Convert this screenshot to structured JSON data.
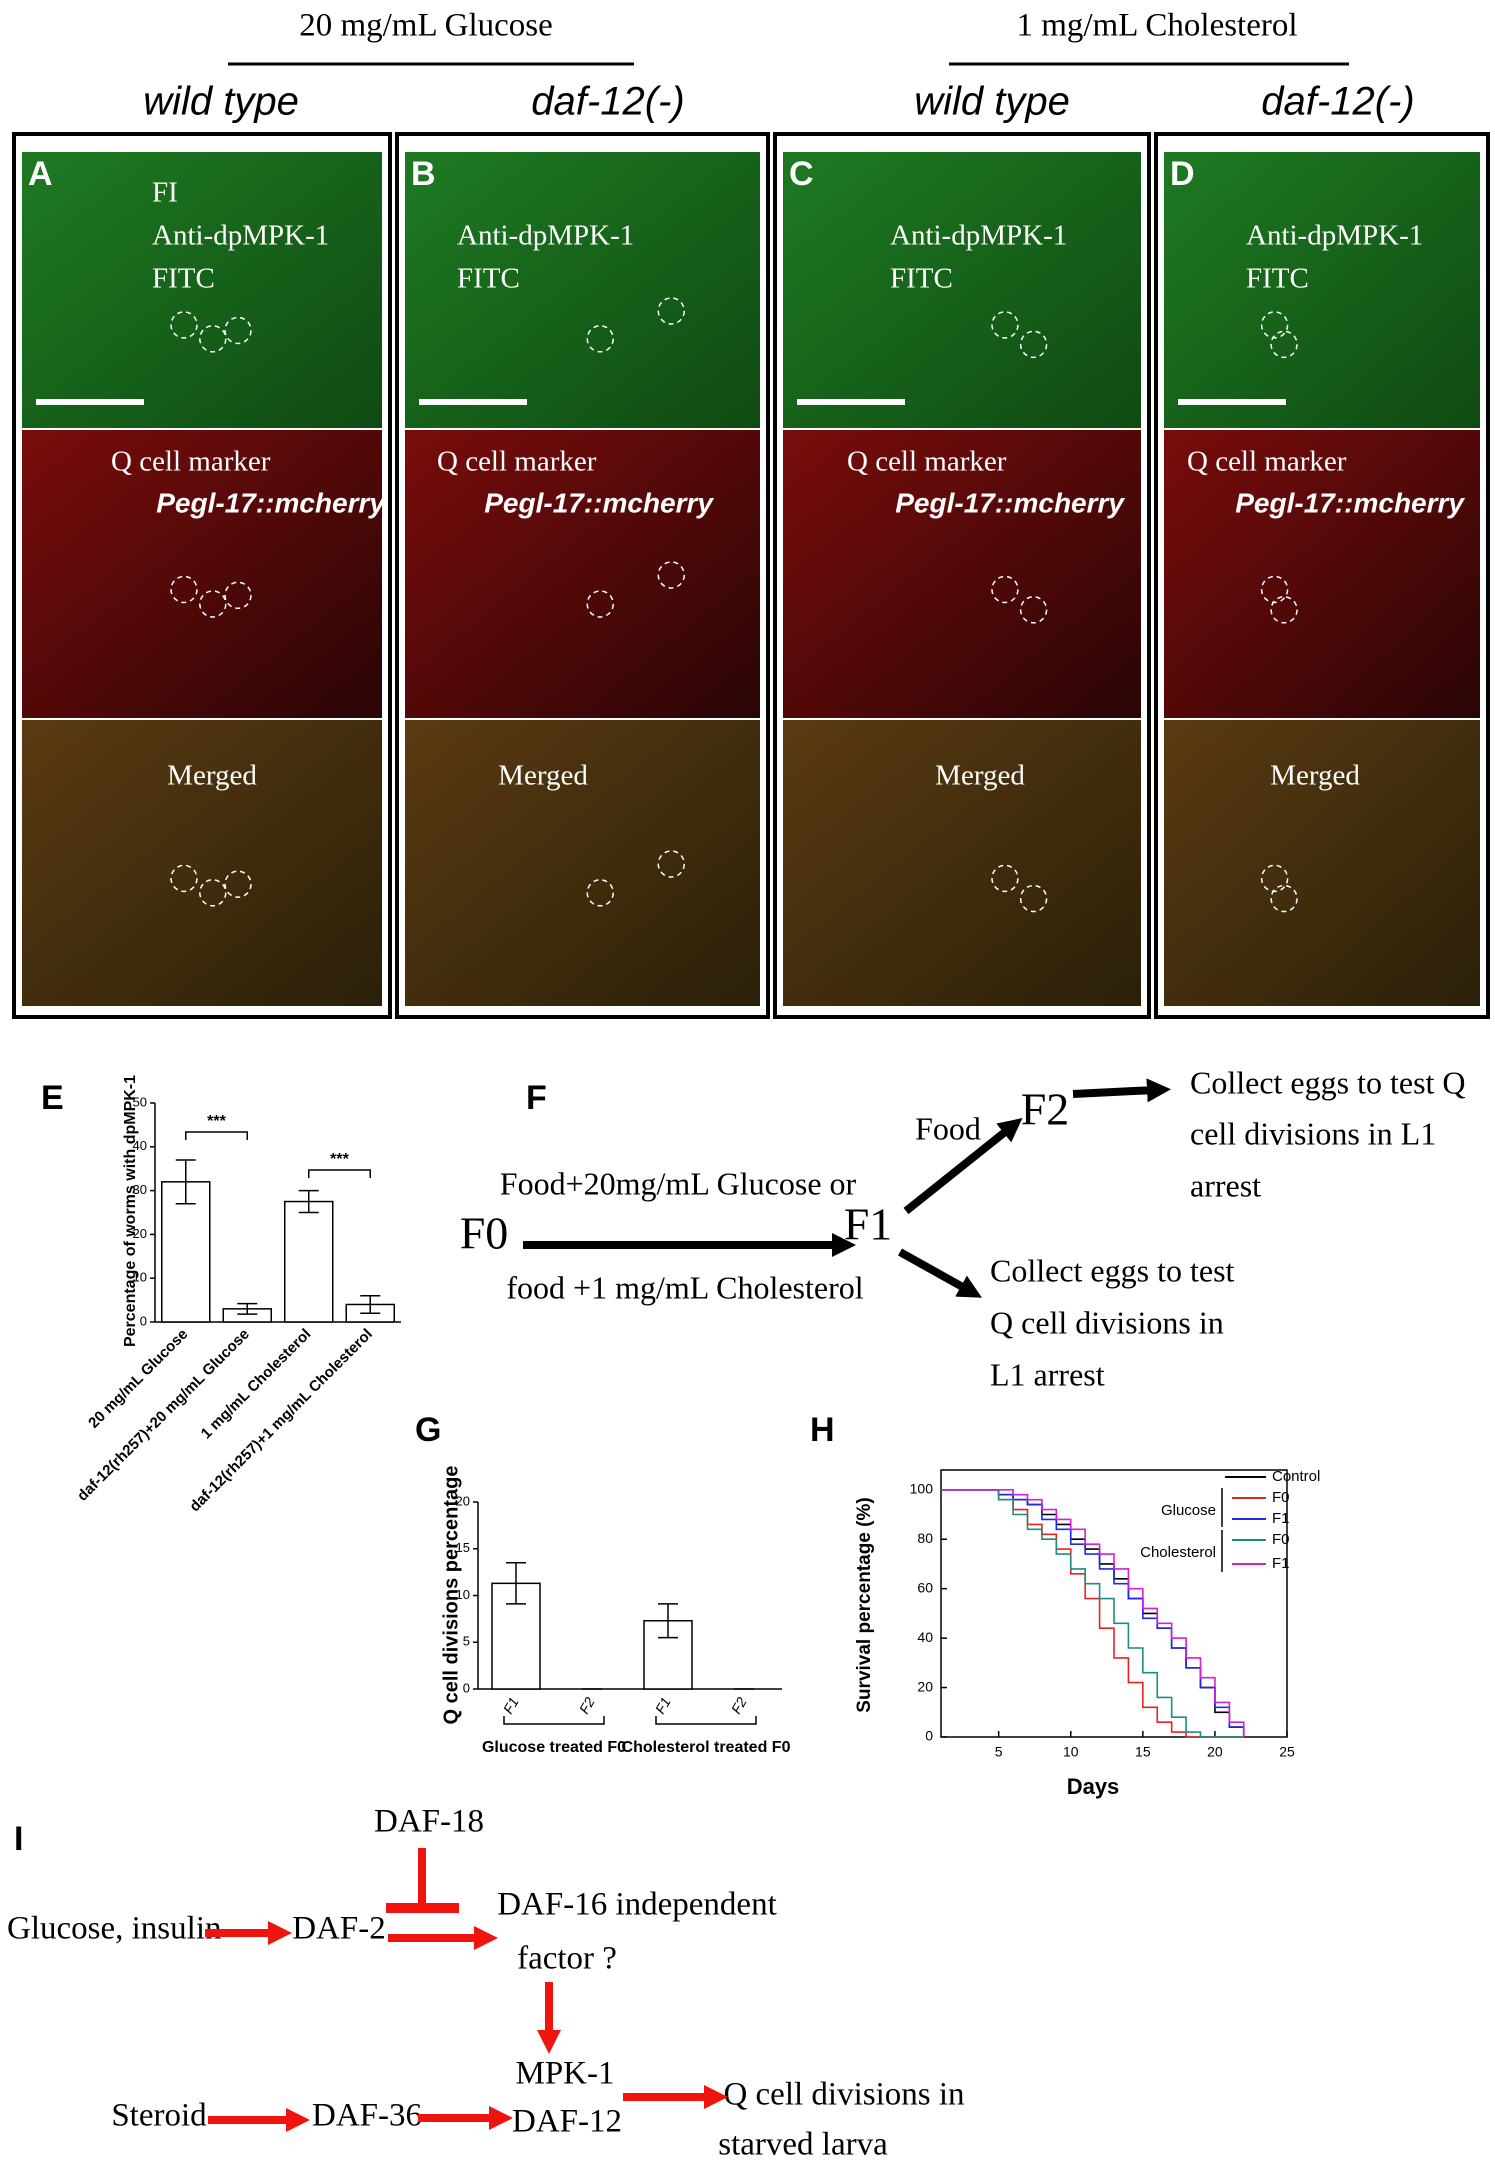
{
  "header": {
    "groups": [
      {
        "title": "20 mg/mL Glucose",
        "columns": [
          "wild type",
          "daf-12(-)"
        ]
      },
      {
        "title": "1 mg/mL Cholesterol",
        "columns": [
          "wild type",
          "daf-12(-)"
        ]
      }
    ]
  },
  "panels": [
    {
      "letter": "A",
      "green": [
        "FI",
        "Anti-dpMPK-1",
        "FITC"
      ],
      "red": [
        "Q cell marker",
        "Pegl-17::mcherry"
      ],
      "merged": "Merged"
    },
    {
      "letter": "B",
      "green": [
        "Anti-dpMPK-1",
        "FITC"
      ],
      "red": [
        "Q cell marker",
        "Pegl-17::mcherry"
      ],
      "merged": "Merged"
    },
    {
      "letter": "C",
      "green": [
        "Anti-dpMPK-1",
        "FITC"
      ],
      "red": [
        "Q cell marker",
        "Pegl-17::mcherry"
      ],
      "merged": "Merged"
    },
    {
      "letter": "D",
      "green": [
        "Anti-dpMPK-1",
        "FITC"
      ],
      "red": [
        "Q cell marker",
        "Pegl-17::mcherry"
      ],
      "merged": "Merged"
    }
  ],
  "chart_data": [
    {
      "type": "bar",
      "letter": "E",
      "y_label": "Percentage of worms with dpMPK-1",
      "categories": [
        "20 mg/mL Glucose",
        "daf-12(rh257)+20 mg/mL Glucose",
        "1 mg/mL Cholesterol",
        "daf-12(rh257)+1 mg/mL Cholesterol"
      ],
      "values": [
        32,
        3,
        27.5,
        4
      ],
      "errors": [
        5,
        1.2,
        2.5,
        2
      ],
      "ylim": [
        0,
        50
      ],
      "yticks": [
        0,
        10,
        20,
        30,
        40,
        50
      ],
      "annotations": [
        "***",
        "***"
      ]
    },
    {
      "type": "bar",
      "letter": "G",
      "y_label": "Q cell divisions percentage",
      "categories": [
        "F1",
        "F2",
        "F1",
        "F2"
      ],
      "groups": [
        "Glucose treated F0",
        "Cholesterol treated F0"
      ],
      "values": [
        11.3,
        0,
        7.3,
        0
      ],
      "errors": [
        2.2,
        0,
        1.8,
        0
      ],
      "ylim": [
        0,
        20
      ],
      "yticks": [
        0,
        5,
        10,
        15,
        20
      ]
    },
    {
      "type": "line",
      "letter": "H",
      "x_label": "Days",
      "y_label": "Survival percentage (%)",
      "x": [
        1,
        2,
        3,
        4,
        5,
        6,
        7,
        8,
        9,
        10,
        11,
        12,
        13,
        14,
        15,
        16,
        17,
        18,
        19,
        20,
        21,
        22
      ],
      "xlim": [
        1,
        25
      ],
      "xticks": [
        5,
        10,
        15,
        20,
        25
      ],
      "ylim": [
        0,
        108
      ],
      "yticks": [
        0,
        20,
        40,
        60,
        80,
        100
      ],
      "legend_groups": [
        "Glucose",
        "Cholesterol"
      ],
      "series": [
        {
          "name": "Control",
          "color": "#000000",
          "values": [
            100,
            100,
            100,
            100,
            98,
            96,
            94,
            90,
            86,
            80,
            76,
            70,
            64,
            56,
            50,
            44,
            36,
            28,
            20,
            10,
            4,
            0
          ]
        },
        {
          "name": "F0",
          "color": "#e8231f",
          "values": [
            100,
            100,
            100,
            100,
            96,
            92,
            86,
            82,
            76,
            66,
            56,
            44,
            32,
            22,
            12,
            6,
            2,
            0,
            0,
            0,
            0,
            0
          ]
        },
        {
          "name": "F1",
          "color": "#1f2be0",
          "values": [
            100,
            100,
            100,
            100,
            98,
            96,
            94,
            88,
            84,
            78,
            74,
            68,
            62,
            56,
            48,
            44,
            36,
            28,
            20,
            12,
            4,
            0
          ]
        },
        {
          "name": "F0",
          "color": "#1f8c80",
          "values": [
            100,
            100,
            100,
            100,
            96,
            90,
            84,
            80,
            74,
            68,
            62,
            56,
            46,
            36,
            26,
            16,
            8,
            2,
            0,
            0,
            0,
            0
          ]
        },
        {
          "name": "F1",
          "color": "#d61fd6",
          "values": [
            100,
            100,
            100,
            100,
            100,
            98,
            96,
            92,
            88,
            84,
            78,
            74,
            68,
            60,
            52,
            46,
            40,
            32,
            24,
            14,
            6,
            0
          ]
        }
      ]
    }
  ],
  "flow": {
    "letter": "F",
    "start": "F0",
    "treatment": [
      "Food+20mg/mL Glucose or",
      "food +1 mg/mL Cholesterol"
    ],
    "middle": "F1",
    "food": "Food",
    "end": "F2",
    "outcome_f2": [
      "Collect eggs to test Q",
      "cell divisions in L1",
      "arrest"
    ],
    "outcome_f1": [
      "Collect eggs to test",
      "Q cell divisions in",
      "L1 arrest"
    ]
  },
  "pathway": {
    "letter": "I",
    "inhibitor": "DAF-18",
    "input": "Glucose, insulin",
    "receptor": "DAF-2",
    "factor": [
      "DAF-16 independent",
      "factor ?"
    ],
    "effectors": [
      "MPK-1",
      "DAF-12"
    ],
    "steroid": "Steroid",
    "enzyme": "DAF-36",
    "outcome": [
      "Q cell divisions in",
      "starved larva"
    ]
  }
}
